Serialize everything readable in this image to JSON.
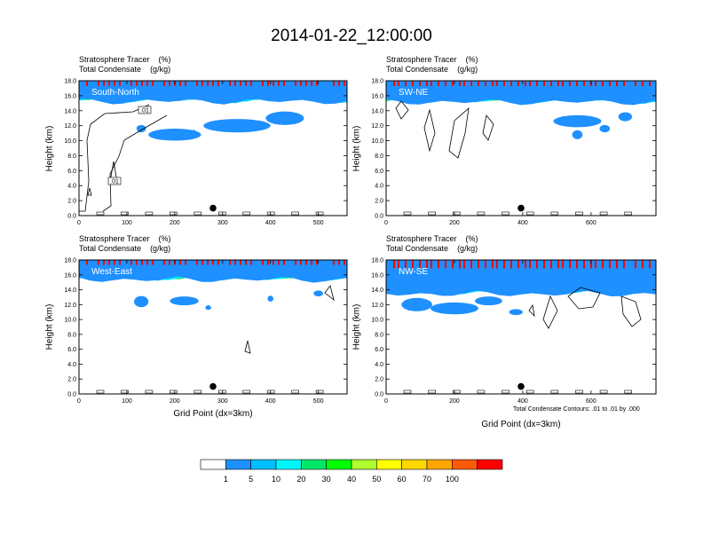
{
  "title": "2014-01-22_12:00:00",
  "note": "Total Condensate Contours: .01 to .01 by .000",
  "colorbar": {
    "colors": [
      "#ffffff",
      "#1e90ff",
      "#00bfff",
      "#00f5ff",
      "#00e86a",
      "#00ff00",
      "#adff2f",
      "#ffff00",
      "#ffd700",
      "#ffa500",
      "#ff5a0a",
      "#ff0000"
    ],
    "labels": [
      "1",
      "5",
      "10",
      "20",
      "30",
      "40",
      "50",
      "60",
      "70",
      "100"
    ]
  },
  "chart_data": [
    {
      "type": "heatmap",
      "name": "South-North",
      "title_lines": [
        {
          "text": "Stratosphere Tracer",
          "unit": "(%)"
        },
        {
          "text": "Total Condensate",
          "unit": "(g/kg)"
        }
      ],
      "ylabel": "Height (km)",
      "xlabel": "",
      "xlim": [
        0,
        560
      ],
      "ylim": [
        0,
        18
      ],
      "xticks": [
        "0",
        "100",
        "200",
        "300",
        "400",
        "500"
      ],
      "yticks": [
        "0.0",
        "2.0",
        "4.0",
        "6.0",
        "8.0",
        "10.0",
        "12.0",
        "14.0",
        "16.0",
        "18.0"
      ],
      "tropopause_km": 15.3,
      "marker": {
        "x": 280,
        "y": 1.0
      },
      "contour_labels": [
        ".01",
        ".01"
      ]
    },
    {
      "type": "heatmap",
      "name": "SW-NE",
      "title_lines": [
        {
          "text": "Stratosphere Tracer",
          "unit": "(%)"
        },
        {
          "text": "Total Condensate",
          "unit": "(g/kg)"
        }
      ],
      "ylabel": "Height (km)",
      "xlabel": "",
      "xlim": [
        0,
        790
      ],
      "ylim": [
        0,
        18
      ],
      "xticks": [
        "0",
        "200",
        "400",
        "600"
      ],
      "yticks": [
        "0.0",
        "2.0",
        "4.0",
        "6.0",
        "8.0",
        "10.0",
        "12.0",
        "14.0",
        "16.0",
        "18.0"
      ],
      "tropopause_km": 15.2,
      "marker": {
        "x": 395,
        "y": 1.0
      }
    },
    {
      "type": "heatmap",
      "name": "West-East",
      "title_lines": [
        {
          "text": "Stratosphere Tracer",
          "unit": "(%)"
        },
        {
          "text": "Total Condensate",
          "unit": "(g/kg)"
        }
      ],
      "ylabel": "Height (km)",
      "xlabel": "Grid Point (dx=3km)",
      "xlim": [
        0,
        560
      ],
      "ylim": [
        0,
        18
      ],
      "xticks": [
        "0",
        "100",
        "200",
        "300",
        "400",
        "500"
      ],
      "yticks": [
        "0.0",
        "2.0",
        "4.0",
        "6.0",
        "8.0",
        "10.0",
        "12.0",
        "14.0",
        "16.0",
        "18.0"
      ],
      "tropopause_km": 15.4,
      "marker": {
        "x": 280,
        "y": 1.0
      }
    },
    {
      "type": "heatmap",
      "name": "NW-SE",
      "title_lines": [
        {
          "text": "Stratosphere Tracer",
          "unit": "(%)"
        },
        {
          "text": "Total Condensate",
          "unit": "(g/kg)"
        }
      ],
      "ylabel": "Height (km)",
      "xlabel": "Grid Point (dx=3km)",
      "xlim": [
        0,
        790
      ],
      "ylim": [
        0,
        18
      ],
      "xticks": [
        "0",
        "200",
        "400",
        "600"
      ],
      "yticks": [
        "0.0",
        "2.0",
        "4.0",
        "6.0",
        "8.0",
        "10.0",
        "12.0",
        "14.0",
        "16.0",
        "18.0"
      ],
      "tropopause_km": 13.5,
      "marker": {
        "x": 395,
        "y": 1.0
      }
    }
  ]
}
